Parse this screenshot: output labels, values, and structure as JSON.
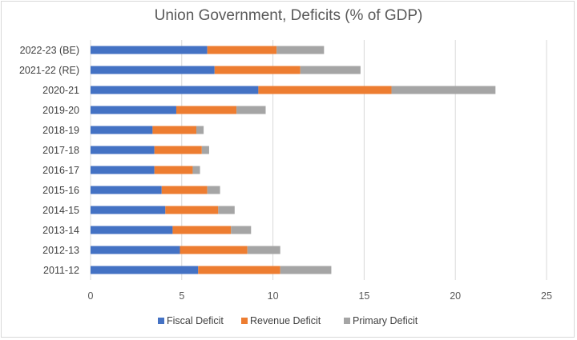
{
  "chart_data": {
    "type": "bar",
    "orientation": "horizontal",
    "stacked": true,
    "title": "Union Government, Deficits (% of GDP)",
    "xlabel": "",
    "ylabel": "",
    "categories": [
      "2022-23 (BE)",
      "2021-22 (RE)",
      "2020-21",
      "2019-20",
      "2018-19",
      "2017-18",
      "2016-17",
      "2015-16",
      "2014-15",
      "2013-14",
      "2012-13",
      "2011-12"
    ],
    "series": [
      {
        "name": "Fiscal Deficit",
        "color": "#4472c4",
        "values": [
          6.4,
          6.8,
          9.2,
          4.7,
          3.4,
          3.5,
          3.5,
          3.9,
          4.1,
          4.5,
          4.9,
          5.9
        ]
      },
      {
        "name": "Revenue Deficit",
        "color": "#ed7d31",
        "values": [
          3.8,
          4.7,
          7.3,
          3.3,
          2.4,
          2.6,
          2.1,
          2.5,
          2.9,
          3.2,
          3.7,
          4.5
        ]
      },
      {
        "name": "Primary Deficit",
        "color": "#a5a5a5",
        "values": [
          2.6,
          3.3,
          5.7,
          1.6,
          0.4,
          0.4,
          0.4,
          0.7,
          0.9,
          1.1,
          1.8,
          2.8
        ]
      }
    ],
    "xlim": [
      0,
      25
    ],
    "x_ticks": [
      0,
      5,
      10,
      15,
      20,
      25
    ],
    "grid": true,
    "legend_position": "bottom"
  }
}
